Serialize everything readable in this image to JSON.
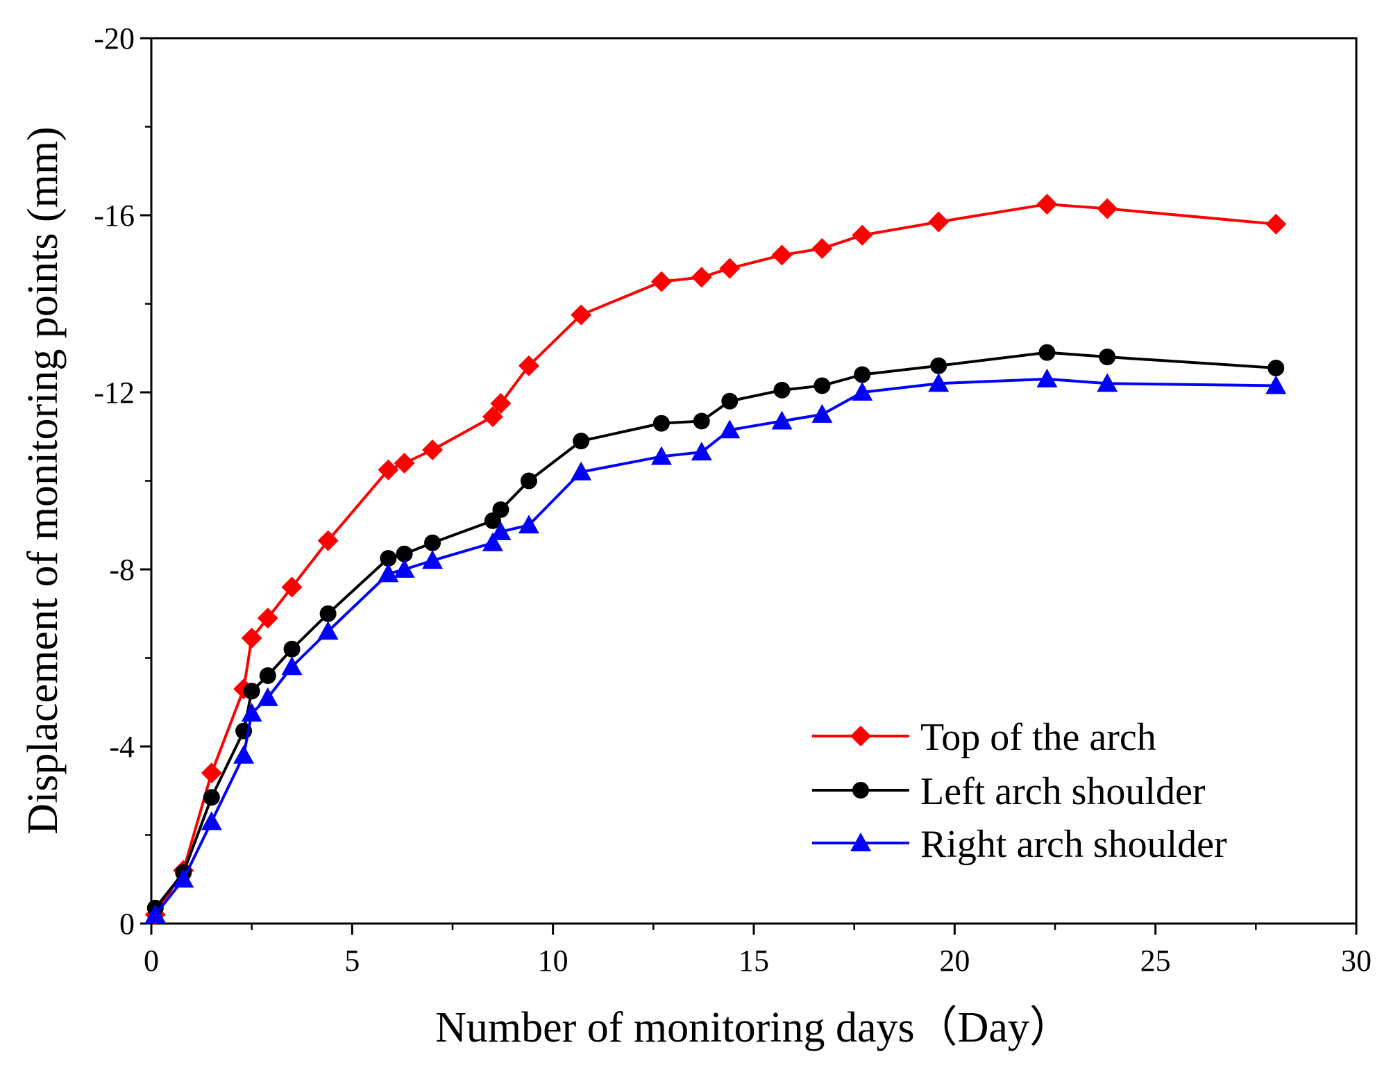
{
  "chart_data": {
    "type": "line",
    "xlabel": "Number of monitoring days（Day）",
    "ylabel": "Displacement of monitoring points (mm)",
    "xlim": [
      0,
      30
    ],
    "ylim": [
      0,
      -20
    ],
    "y_axis_inverted": true,
    "xticks": [
      0,
      5,
      10,
      15,
      20,
      25,
      30
    ],
    "yticks": [
      0,
      -4,
      -8,
      -12,
      -16,
      -20
    ],
    "grid": false,
    "legend_position": "bottom-right",
    "series": [
      {
        "name": "Top of the arch",
        "color": "#ff0000",
        "marker": "diamond",
        "x": [
          0.1,
          0.8,
          1.5,
          2.3,
          2.5,
          2.9,
          3.5,
          4.4,
          5.9,
          6.3,
          7.0,
          8.5,
          8.7,
          9.4,
          10.7,
          12.7,
          13.7,
          14.4,
          15.7,
          16.7,
          17.7,
          19.6,
          22.3,
          23.8,
          28.0
        ],
        "y": [
          -0.2,
          -1.2,
          -3.4,
          -5.3,
          -6.45,
          -6.9,
          -7.6,
          -8.65,
          -10.25,
          -10.4,
          -10.7,
          -11.45,
          -11.75,
          -12.6,
          -13.75,
          -14.5,
          -14.6,
          -14.8,
          -15.1,
          -15.25,
          -15.55,
          -15.85,
          -16.25,
          -16.15,
          -15.8
        ]
      },
      {
        "name": "Left arch shoulder",
        "color": "#000000",
        "marker": "circle",
        "x": [
          0.1,
          0.8,
          1.5,
          2.3,
          2.5,
          2.9,
          3.5,
          4.4,
          5.9,
          6.3,
          7.0,
          8.5,
          8.7,
          9.4,
          10.7,
          12.7,
          13.7,
          14.4,
          15.7,
          16.7,
          17.7,
          19.6,
          22.3,
          23.8,
          28.0
        ],
        "y": [
          -0.35,
          -1.15,
          -2.85,
          -4.35,
          -5.25,
          -5.6,
          -6.2,
          -7.0,
          -8.25,
          -8.35,
          -8.6,
          -9.1,
          -9.35,
          -10.0,
          -10.9,
          -11.3,
          -11.35,
          -11.8,
          -12.05,
          -12.15,
          -12.4,
          -12.6,
          -12.9,
          -12.8,
          -12.55
        ]
      },
      {
        "name": "Right arch shoulder",
        "color": "#0000ff",
        "marker": "triangle",
        "x": [
          0.1,
          0.8,
          1.5,
          2.3,
          2.5,
          2.9,
          3.5,
          4.4,
          5.9,
          6.3,
          7.0,
          8.5,
          8.7,
          9.4,
          10.7,
          12.7,
          13.7,
          14.4,
          15.7,
          16.7,
          17.7,
          19.6,
          22.3,
          23.8,
          28.0
        ],
        "y": [
          -0.2,
          -1.0,
          -2.3,
          -3.8,
          -4.75,
          -5.1,
          -5.8,
          -6.6,
          -7.9,
          -8.0,
          -8.2,
          -8.6,
          -8.85,
          -9.0,
          -10.2,
          -10.55,
          -10.65,
          -11.15,
          -11.35,
          -11.5,
          -12.0,
          -12.2,
          -12.3,
          -12.2,
          -12.15
        ]
      }
    ]
  }
}
